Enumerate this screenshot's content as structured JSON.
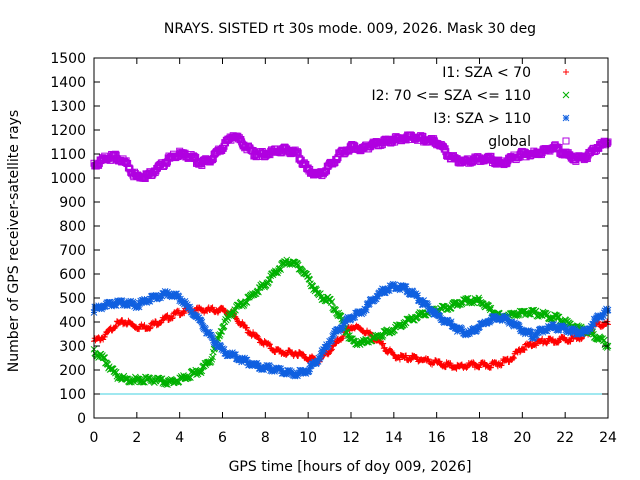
{
  "chart_data": {
    "type": "scatter",
    "title": "NRAYS. SISTED rt 30s mode. 009, 2026. Mask 30 deg",
    "xlabel": "GPS time [hours of doy 009, 2026]",
    "ylabel": "Number of GPS receiver-satellite rays",
    "xlim": [
      0,
      24
    ],
    "ylim": [
      0,
      1500
    ],
    "xticks": [
      0,
      2,
      4,
      6,
      8,
      10,
      12,
      14,
      16,
      18,
      20,
      22,
      24
    ],
    "yticks": [
      0,
      100,
      200,
      300,
      400,
      500,
      600,
      700,
      800,
      900,
      1000,
      1100,
      1200,
      1300,
      1400,
      1500
    ],
    "legend_position": "top-right",
    "reference_line": {
      "y": 100,
      "color": "#40d0e0"
    },
    "series": [
      {
        "name": "I1: SZA < 70",
        "marker": "plus",
        "color": "#ff0000",
        "x": [
          0,
          0.5,
          1,
          1.5,
          2,
          2.5,
          3,
          3.5,
          4,
          4.5,
          5,
          5.5,
          6,
          6.5,
          7,
          7.5,
          8,
          8.5,
          9,
          9.5,
          10,
          10.5,
          11,
          11.5,
          12,
          12.5,
          13,
          13.5,
          14,
          14.5,
          15,
          15.5,
          16,
          16.5,
          17,
          17.5,
          18,
          18.5,
          19,
          19.5,
          20,
          20.5,
          21,
          21.5,
          22,
          22.5,
          23,
          23.5,
          24
        ],
        "y": [
          320,
          340,
          390,
          400,
          380,
          380,
          400,
          420,
          440,
          450,
          450,
          450,
          450,
          430,
          380,
          340,
          310,
          280,
          270,
          270,
          250,
          240,
          280,
          330,
          380,
          370,
          340,
          300,
          260,
          250,
          250,
          240,
          230,
          220,
          210,
          220,
          220,
          220,
          230,
          250,
          290,
          310,
          320,
          320,
          330,
          330,
          350,
          390,
          390
        ]
      },
      {
        "name": "I2: 70 <= SZA <= 110",
        "marker": "cross",
        "color": "#00b000",
        "x": [
          0,
          0.5,
          1,
          1.5,
          2,
          2.5,
          3,
          3.5,
          4,
          4.5,
          5,
          5.5,
          6,
          6.5,
          7,
          7.5,
          8,
          8.5,
          9,
          9.5,
          10,
          10.5,
          11,
          11.5,
          12,
          12.5,
          13,
          13.5,
          14,
          14.5,
          15,
          15.5,
          16,
          16.5,
          17,
          17.5,
          18,
          18.5,
          19,
          19.5,
          20,
          20.5,
          21,
          21.5,
          22,
          22.5,
          23,
          23.5,
          24
        ],
        "y": [
          280,
          240,
          180,
          160,
          160,
          160,
          155,
          150,
          160,
          180,
          200,
          250,
          380,
          450,
          480,
          520,
          560,
          610,
          650,
          640,
          580,
          510,
          490,
          420,
          320,
          310,
          330,
          350,
          370,
          400,
          420,
          440,
          450,
          460,
          480,
          490,
          490,
          450,
          420,
          430,
          440,
          440,
          430,
          420,
          400,
          380,
          360,
          340,
          300
        ]
      },
      {
        "name": "I3: SZA > 110",
        "marker": "star",
        "color": "#1060e0",
        "x": [
          0,
          0.5,
          1,
          1.5,
          2,
          2.5,
          3,
          3.5,
          4,
          4.5,
          5,
          5.5,
          6,
          6.5,
          7,
          7.5,
          8,
          8.5,
          9,
          9.5,
          10,
          10.5,
          11,
          11.5,
          12,
          12.5,
          13,
          13.5,
          14,
          14.5,
          15,
          15.5,
          16,
          16.5,
          17,
          17.5,
          18,
          18.5,
          19,
          19.5,
          20,
          20.5,
          21,
          21.5,
          22,
          22.5,
          23,
          23.5,
          24
        ],
        "y": [
          450,
          470,
          480,
          480,
          470,
          490,
          510,
          520,
          500,
          450,
          400,
          330,
          280,
          260,
          240,
          220,
          210,
          200,
          190,
          185,
          200,
          250,
          320,
          380,
          420,
          440,
          490,
          530,
          550,
          540,
          510,
          470,
          430,
          400,
          370,
          350,
          380,
          410,
          420,
          400,
          370,
          340,
          370,
          380,
          370,
          360,
          360,
          420,
          450
        ]
      },
      {
        "name": "global",
        "marker": "square",
        "color": "#b000e0",
        "x": [
          0,
          0.5,
          1,
          1.5,
          2,
          2.5,
          3,
          3.5,
          4,
          4.5,
          5,
          5.5,
          6,
          6.5,
          7,
          7.5,
          8,
          8.5,
          9,
          9.5,
          10,
          10.5,
          11,
          11.5,
          12,
          12.5,
          13,
          13.5,
          14,
          14.5,
          15,
          15.5,
          16,
          16.5,
          17,
          17.5,
          18,
          18.5,
          19,
          19.5,
          20,
          20.5,
          21,
          21.5,
          22,
          22.5,
          23,
          23.5,
          24
        ],
        "y": [
          1050,
          1080,
          1090,
          1060,
          1000,
          1010,
          1040,
          1080,
          1100,
          1090,
          1060,
          1080,
          1130,
          1180,
          1140,
          1100,
          1100,
          1110,
          1120,
          1100,
          1030,
          1010,
          1050,
          1100,
          1130,
          1120,
          1140,
          1150,
          1160,
          1170,
          1170,
          1160,
          1150,
          1100,
          1070,
          1070,
          1080,
          1080,
          1060,
          1080,
          1100,
          1100,
          1110,
          1130,
          1100,
          1080,
          1090,
          1130,
          1150
        ]
      }
    ]
  }
}
